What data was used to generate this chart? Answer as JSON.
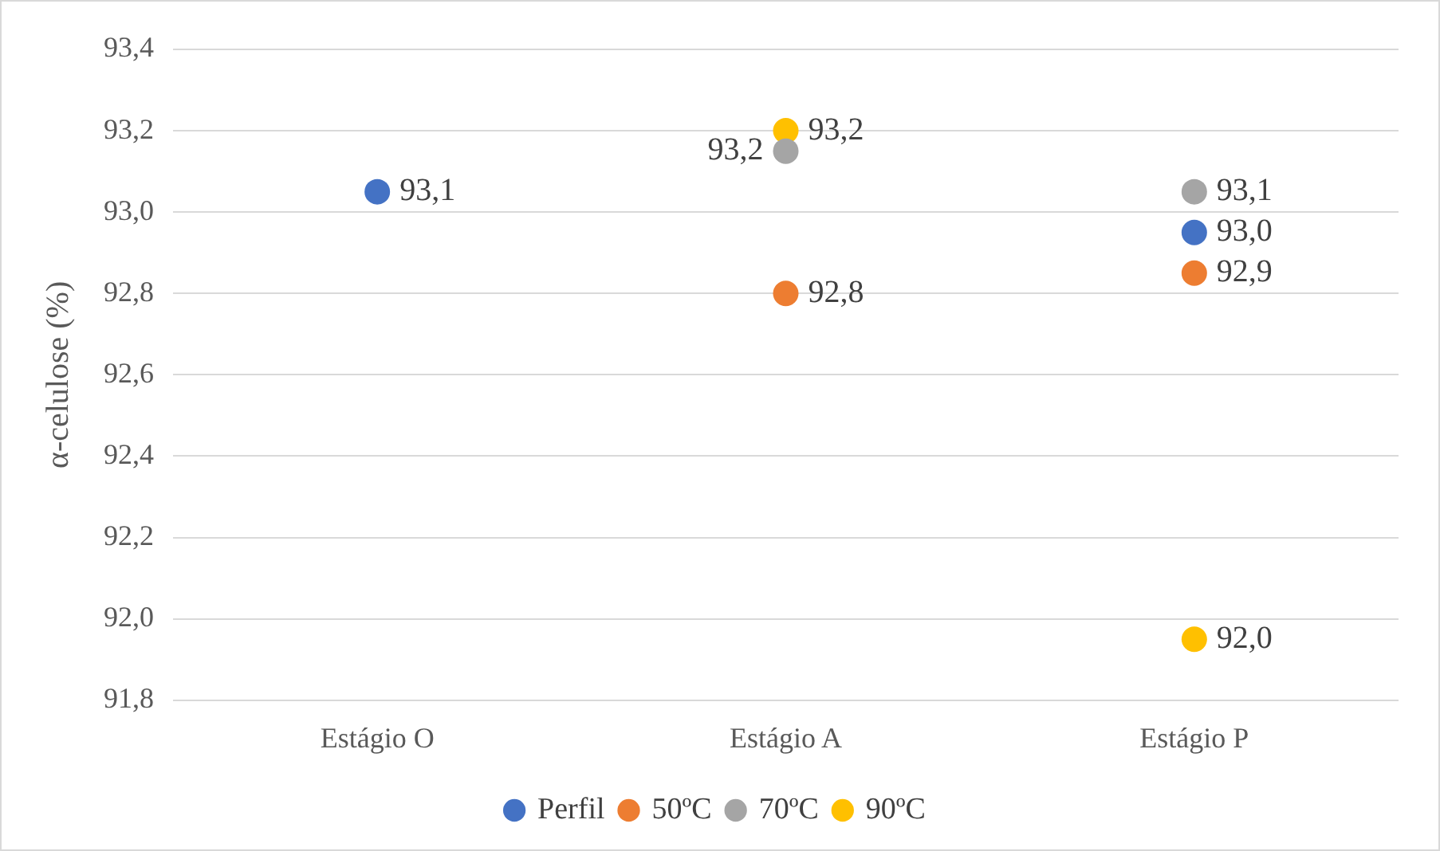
{
  "chart_data": {
    "type": "scatter",
    "ylabel": "α-celulose (%)",
    "categories": [
      "Estágio O",
      "Estágio A",
      "Estágio P"
    ],
    "series": [
      {
        "name": "Perfil",
        "color": "#4472c4",
        "values": [
          93.05,
          null,
          92.95
        ],
        "value_labels": [
          "93,1",
          null,
          "93,0"
        ]
      },
      {
        "name": "50ºC",
        "color": "#ed7d31",
        "values": [
          null,
          92.8,
          92.85
        ],
        "value_labels": [
          null,
          "92,8",
          "92,9"
        ]
      },
      {
        "name": "70ºC",
        "color": "#a5a5a5",
        "values": [
          null,
          93.15,
          93.05
        ],
        "value_labels": [
          null,
          "93,2",
          "93,1"
        ]
      },
      {
        "name": "90ºC",
        "color": "#ffc000",
        "values": [
          null,
          93.2,
          91.95
        ],
        "value_labels": [
          null,
          "93,2",
          "92,0"
        ]
      }
    ],
    "ylim": [
      91.8,
      93.4
    ],
    "yticks": [
      {
        "value": 91.8,
        "label": "91,8"
      },
      {
        "value": 92.0,
        "label": "92,0"
      },
      {
        "value": 92.2,
        "label": "92,2"
      },
      {
        "value": 92.4,
        "label": "92,4"
      },
      {
        "value": 92.6,
        "label": "92,6"
      },
      {
        "value": 92.8,
        "label": "92,8"
      },
      {
        "value": 93.0,
        "label": "93,0"
      },
      {
        "value": 93.2,
        "label": "93,2"
      },
      {
        "value": 93.4,
        "label": "93,4"
      }
    ],
    "grid": "y",
    "legend": "bottom",
    "marker": "circle"
  }
}
